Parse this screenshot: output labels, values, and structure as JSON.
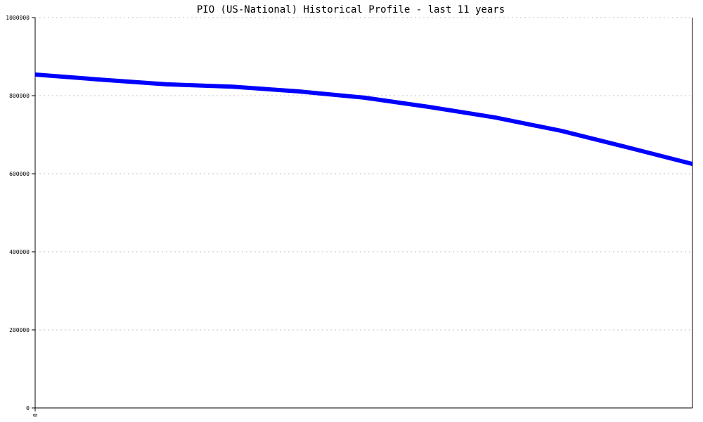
{
  "chart_data": {
    "type": "line",
    "title": "PIO (US-National) Historical Profile - last 11 years",
    "xlabel": "",
    "ylabel": "",
    "x_tick_labels": [
      "0"
    ],
    "y_tick_labels": [
      "0",
      "200000",
      "400000",
      "600000",
      "800000",
      "1000000"
    ],
    "y_ticks": [
      0,
      200000,
      400000,
      600000,
      800000,
      1000000
    ],
    "ylim": [
      0,
      1000000
    ],
    "grid": true,
    "series": [
      {
        "color": "#0000ff",
        "values": [
          854000,
          841000,
          829000,
          823000,
          811000,
          795000,
          771000,
          744000,
          710000,
          668000,
          625000
        ]
      }
    ]
  }
}
